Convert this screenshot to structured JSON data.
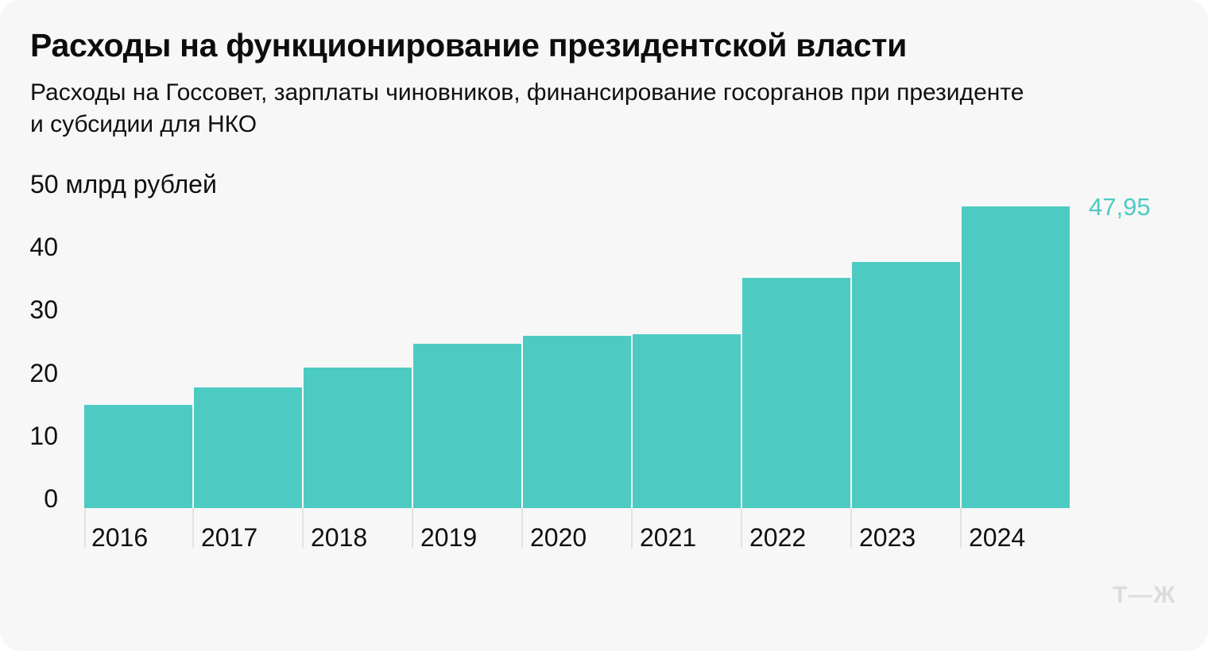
{
  "chart_data": {
    "type": "bar",
    "title": "Расходы на функционирование президентской власти",
    "subtitle_lines": [
      "Расходы на Госсовет, зарплаты чиновников, финансирование госорганов при президенте",
      "и субсидии для НКО"
    ],
    "categories": [
      "2016",
      "2017",
      "2018",
      "2019",
      "2020",
      "2021",
      "2022",
      "2023",
      "2024"
    ],
    "values": [
      16.4,
      19.2,
      22.3,
      26.1,
      27.4,
      27.6,
      36.6,
      39.1,
      47.95
    ],
    "unit_label": "млрд рублей",
    "ylabel": "50 млрд рублей",
    "ylim": [
      0,
      50
    ],
    "grid": false,
    "legend": false,
    "y_ticks": [
      {
        "value": 50,
        "label": "50 млрд рублей"
      },
      {
        "value": 40,
        "label": "40"
      },
      {
        "value": 30,
        "label": "30"
      },
      {
        "value": 20,
        "label": "20"
      },
      {
        "value": 10,
        "label": "10"
      },
      {
        "value": 0,
        "label": "0"
      }
    ],
    "annotation": {
      "text": "47,95",
      "category": "2024"
    },
    "bar_color": "#4DCBC3"
  },
  "colors": {
    "background": "#F7F7F7",
    "accent_teal": "#4DCBC3",
    "tick_line": "#E1E1E1",
    "logo_gray": "#DCDCDC",
    "text": "#101010"
  },
  "footer": {
    "logo_text": "Т—Ж"
  }
}
